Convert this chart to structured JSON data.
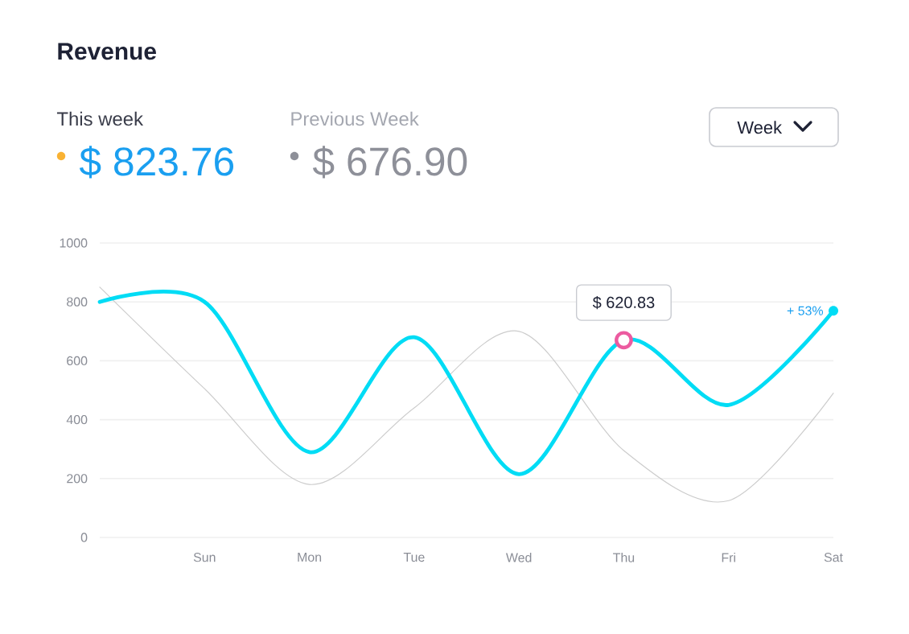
{
  "chart_data": {
    "type": "line",
    "title": "Revenue",
    "categories": [
      null,
      "Sun",
      "Mon",
      "Tue",
      "Wed",
      "Thu",
      "Fri",
      "Sat"
    ],
    "series": [
      {
        "color": "#00dcf5",
        "values": [
          800,
          800,
          290,
          680,
          215,
          670,
          450,
          770
        ]
      },
      {
        "color": "#cccccc",
        "values": [
          850,
          505,
          180,
          440,
          700,
          295,
          125,
          490
        ]
      }
    ],
    "ylim": [
      0,
      1000
    ],
    "yticks": [
      0,
      200,
      400,
      600,
      800,
      1000
    ],
    "grid": "y",
    "annotations": [
      "This week",
      "$ 823.76",
      "Previous Week",
      "$ 676.90",
      "Week",
      {
        "text": "$ 620.83",
        "x": "Thu",
        "y": 670
      },
      {
        "text": "+ 53%",
        "x": "Sat",
        "y": 770
      }
    ]
  }
}
